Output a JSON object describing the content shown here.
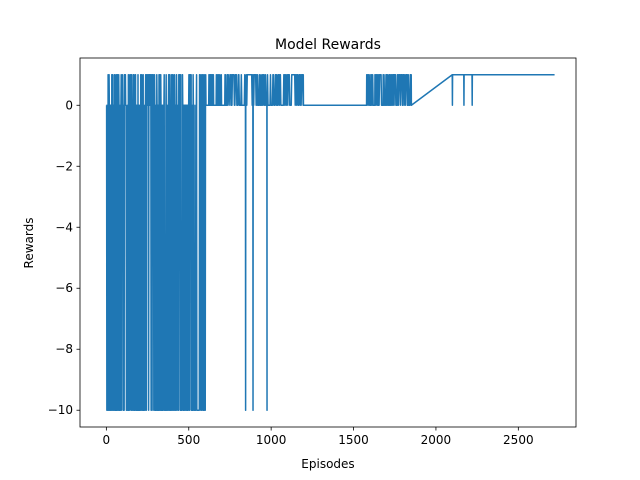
{
  "chart_data": {
    "type": "line",
    "title": "Model Rewards",
    "xlabel": "Episodes",
    "ylabel": "Rewards",
    "xlim": [
      -160,
      2850
    ],
    "ylim": [
      -10.55,
      1.55
    ],
    "xticks": [
      0,
      500,
      1000,
      1500,
      2000,
      2500
    ],
    "xtick_labels": [
      "0",
      "500",
      "1000",
      "1500",
      "2000",
      "2500"
    ],
    "yticks": [
      -10,
      -8,
      -6,
      -4,
      -2,
      0
    ],
    "ytick_labels": [
      "−10",
      "−8",
      "−6",
      "−4",
      "−2",
      "0"
    ],
    "grid": false,
    "legend": "none",
    "series": [
      {
        "color": "#1f77b4",
        "reward_levels": [
          -10,
          0,
          1
        ],
        "dense_region": {
          "x_range": [
            0,
            740
          ],
          "levels": [
            -10,
            0,
            1
          ],
          "note_value_switching": "alternating"
        },
        "x_episodes": [
          0,
          740,
          850,
          890,
          975,
          1000,
          1100,
          1200,
          1580,
          1650,
          1850,
          2100,
          2170,
          2220,
          2720
        ],
        "y_rewards": [
          0,
          -10,
          -10,
          -10,
          -10,
          0,
          1,
          0,
          1,
          1,
          1,
          0,
          0,
          0,
          1
        ],
        "neg_spikes": [
          845,
          890,
          975
        ],
        "unit_spikes_sparse": [
          1195,
          1580,
          1605,
          1630,
          1650,
          1680,
          1700,
          1720,
          1745,
          1770,
          1800,
          1830,
          1850
        ],
        "zero_dips_after_plateau": [
          2100,
          2170,
          2220
        ],
        "plateau": {
          "from": 1850,
          "to": 2720,
          "value": 1
        },
        "end_episode": 2720
      }
    ]
  }
}
